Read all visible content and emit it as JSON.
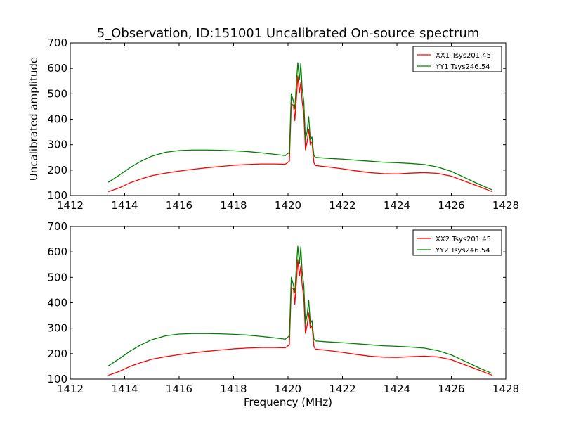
{
  "chart_data": [
    {
      "type": "line",
      "title": "5_Observation, ID:151001 Uncalibrated On-source spectrum",
      "xlabel": "",
      "ylabel": "Uncalibrated amplitude",
      "xlim": [
        1412,
        1428
      ],
      "ylim": [
        100,
        700
      ],
      "xticks": [
        "1412",
        "1414",
        "1416",
        "1418",
        "1420",
        "1422",
        "1424",
        "1426",
        "1428"
      ],
      "yticks": [
        "100",
        "200",
        "300",
        "400",
        "500",
        "600",
        "700"
      ],
      "legend_position": "top-right",
      "series": [
        {
          "name": "XX1 Tsys201.45",
          "color": "#ff0000",
          "x": [
            1413.4,
            1413.8,
            1414.2,
            1414.6,
            1415.0,
            1415.5,
            1416.0,
            1416.5,
            1417.0,
            1417.5,
            1418.0,
            1418.5,
            1419.0,
            1419.5,
            1419.9,
            1420.05,
            1420.12,
            1420.2,
            1420.25,
            1420.3,
            1420.36,
            1420.42,
            1420.47,
            1420.52,
            1420.58,
            1420.64,
            1420.7,
            1420.76,
            1420.82,
            1420.88,
            1420.95,
            1421.0,
            1421.5,
            1422.0,
            1422.5,
            1423.0,
            1423.5,
            1424.0,
            1424.5,
            1425.0,
            1425.5,
            1426.0,
            1426.5,
            1427.0,
            1427.5
          ],
          "y": [
            115,
            130,
            150,
            165,
            178,
            188,
            196,
            203,
            209,
            214,
            219,
            222,
            224,
            224,
            223,
            235,
            460,
            455,
            395,
            470,
            570,
            505,
            545,
            470,
            420,
            280,
            310,
            360,
            300,
            310,
            230,
            218,
            212,
            205,
            197,
            190,
            186,
            185,
            188,
            190,
            187,
            176,
            156,
            136,
            115
          ]
        },
        {
          "name": "YY1 Tsys246.54",
          "color": "#008000",
          "x": [
            1413.4,
            1413.8,
            1414.2,
            1414.6,
            1415.0,
            1415.5,
            1416.0,
            1416.5,
            1417.0,
            1417.5,
            1418.0,
            1418.5,
            1419.0,
            1419.5,
            1419.9,
            1420.05,
            1420.12,
            1420.2,
            1420.25,
            1420.3,
            1420.36,
            1420.42,
            1420.47,
            1420.52,
            1420.58,
            1420.64,
            1420.7,
            1420.76,
            1420.82,
            1420.88,
            1420.95,
            1421.0,
            1421.5,
            1422.0,
            1422.5,
            1423.0,
            1423.5,
            1424.0,
            1424.5,
            1425.0,
            1425.5,
            1426.0,
            1426.5,
            1427.0,
            1427.5
          ],
          "y": [
            152,
            180,
            210,
            235,
            255,
            270,
            277,
            279,
            279,
            278,
            276,
            273,
            268,
            262,
            257,
            270,
            500,
            470,
            440,
            530,
            622,
            555,
            620,
            520,
            470,
            320,
            350,
            410,
            320,
            330,
            258,
            250,
            246,
            243,
            239,
            235,
            231,
            229,
            226,
            222,
            212,
            195,
            170,
            145,
            122
          ]
        }
      ]
    },
    {
      "type": "line",
      "title": "",
      "xlabel": "Frequency (MHz)",
      "ylabel": "",
      "xlim": [
        1412,
        1428
      ],
      "ylim": [
        100,
        700
      ],
      "xticks": [
        "1412",
        "1414",
        "1416",
        "1418",
        "1420",
        "1422",
        "1424",
        "1426",
        "1428"
      ],
      "yticks": [
        "100",
        "200",
        "300",
        "400",
        "500",
        "600",
        "700"
      ],
      "legend_position": "top-right",
      "series": [
        {
          "name": "XX2 Tsys201.45",
          "color": "#ff0000",
          "x": [
            1413.4,
            1413.8,
            1414.2,
            1414.6,
            1415.0,
            1415.5,
            1416.0,
            1416.5,
            1417.0,
            1417.5,
            1418.0,
            1418.5,
            1419.0,
            1419.5,
            1419.9,
            1420.05,
            1420.12,
            1420.2,
            1420.25,
            1420.3,
            1420.36,
            1420.42,
            1420.47,
            1420.52,
            1420.58,
            1420.64,
            1420.7,
            1420.76,
            1420.82,
            1420.88,
            1420.95,
            1421.0,
            1421.5,
            1422.0,
            1422.5,
            1423.0,
            1423.5,
            1424.0,
            1424.5,
            1425.0,
            1425.5,
            1426.0,
            1426.5,
            1427.0,
            1427.5
          ],
          "y": [
            115,
            130,
            150,
            165,
            178,
            188,
            196,
            203,
            209,
            214,
            219,
            222,
            224,
            224,
            223,
            235,
            460,
            455,
            395,
            470,
            570,
            505,
            545,
            470,
            420,
            280,
            310,
            360,
            300,
            310,
            230,
            218,
            212,
            205,
            197,
            190,
            186,
            185,
            188,
            190,
            187,
            176,
            156,
            136,
            115
          ]
        },
        {
          "name": "YY2 Tsys246.54",
          "color": "#008000",
          "x": [
            1413.4,
            1413.8,
            1414.2,
            1414.6,
            1415.0,
            1415.5,
            1416.0,
            1416.5,
            1417.0,
            1417.5,
            1418.0,
            1418.5,
            1419.0,
            1419.5,
            1419.9,
            1420.05,
            1420.12,
            1420.2,
            1420.25,
            1420.3,
            1420.36,
            1420.42,
            1420.47,
            1420.52,
            1420.58,
            1420.64,
            1420.7,
            1420.76,
            1420.82,
            1420.88,
            1420.95,
            1421.0,
            1421.5,
            1422.0,
            1422.5,
            1423.0,
            1423.5,
            1424.0,
            1424.5,
            1425.0,
            1425.5,
            1426.0,
            1426.5,
            1427.0,
            1427.5
          ],
          "y": [
            152,
            180,
            210,
            235,
            255,
            270,
            277,
            279,
            279,
            278,
            276,
            273,
            268,
            262,
            257,
            270,
            500,
            470,
            440,
            530,
            622,
            555,
            620,
            520,
            470,
            320,
            350,
            410,
            320,
            330,
            258,
            250,
            246,
            243,
            239,
            235,
            231,
            229,
            226,
            222,
            212,
            195,
            170,
            145,
            122
          ]
        }
      ]
    }
  ]
}
